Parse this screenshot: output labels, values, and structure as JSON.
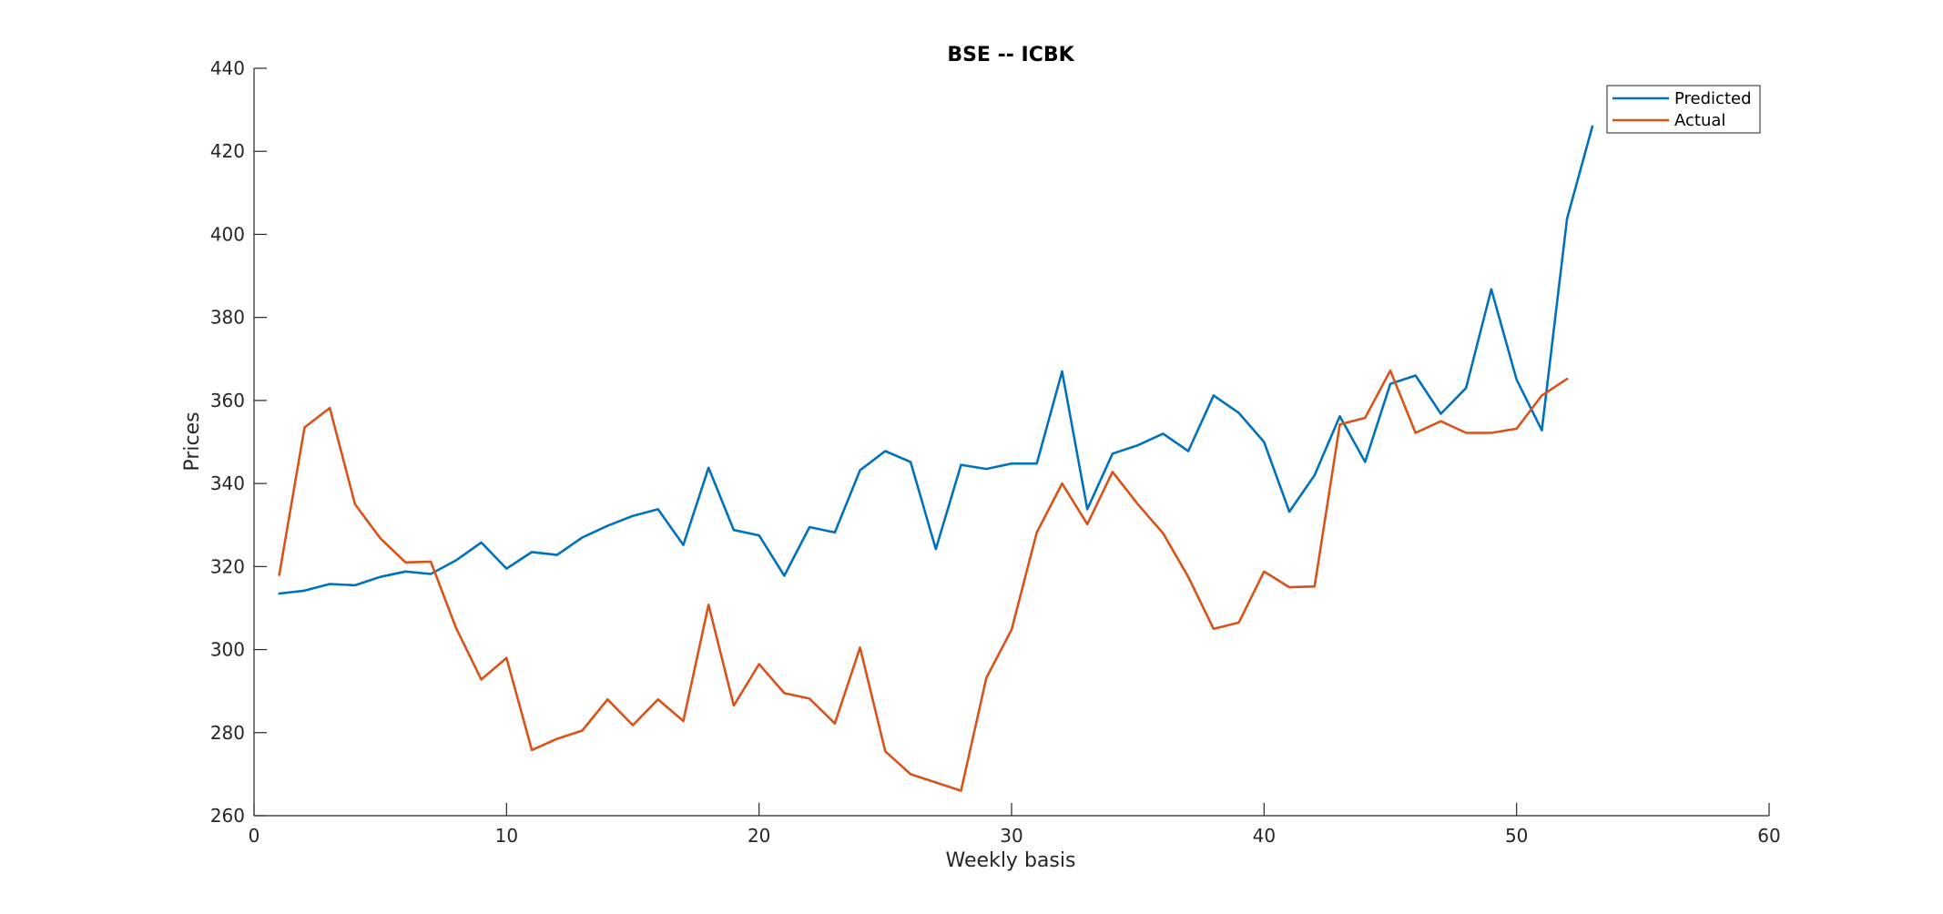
{
  "chart_data": {
    "type": "line",
    "title": "BSE -- ICBK",
    "xlabel": "Weekly basis",
    "ylabel": "Prices",
    "xlim": [
      0,
      60
    ],
    "ylim": [
      260,
      440
    ],
    "xticks": [
      "0",
      "10",
      "20",
      "30",
      "40",
      "50",
      "60"
    ],
    "yticks": [
      "260",
      "280",
      "300",
      "320",
      "340",
      "360",
      "380",
      "400",
      "420",
      "440"
    ],
    "xtick_values": [
      0,
      10,
      20,
      30,
      40,
      50,
      60
    ],
    "ytick_values": [
      260,
      280,
      300,
      320,
      340,
      360,
      380,
      400,
      420,
      440
    ],
    "grid": false,
    "legend_position": "top-right",
    "series": [
      {
        "name": "Predicted",
        "color": "#0072BD",
        "x": [
          1,
          2,
          3,
          4,
          5,
          6,
          7,
          8,
          9,
          10,
          11,
          12,
          13,
          14,
          15,
          16,
          17,
          18,
          19,
          20,
          21,
          22,
          23,
          24,
          25,
          26,
          27,
          28,
          29,
          30,
          31,
          32,
          33,
          34,
          35,
          36,
          37,
          38,
          39,
          40,
          41,
          42,
          43,
          44,
          45,
          46,
          47,
          48,
          49,
          50,
          51,
          52,
          53
        ],
        "y": [
          313.5,
          314.2,
          315.8,
          315.5,
          317.5,
          318.8,
          318.2,
          321.5,
          325.8,
          319.5,
          323.5,
          322.8,
          327.0,
          329.8,
          332.2,
          333.8,
          325.2,
          343.8,
          328.8,
          327.5,
          317.8,
          329.5,
          328.2,
          343.2,
          347.8,
          345.2,
          324.2,
          344.5,
          343.5,
          344.8,
          344.8,
          367.0,
          333.8,
          347.2,
          349.2,
          352.0,
          347.8,
          361.2,
          357.0,
          350.0,
          333.2,
          342.0,
          356.2,
          345.2,
          364.0,
          366.0,
          356.8,
          363.0,
          386.8,
          365.0,
          352.8,
          403.8,
          426.0
        ]
      },
      {
        "name": "Actual",
        "color": "#D95319",
        "x": [
          1,
          2,
          3,
          4,
          5,
          6,
          7,
          8,
          9,
          10,
          11,
          12,
          13,
          14,
          15,
          16,
          17,
          18,
          19,
          20,
          21,
          22,
          23,
          24,
          25,
          26,
          27,
          28,
          29,
          30,
          31,
          32,
          33,
          34,
          35,
          36,
          37,
          38,
          39,
          40,
          41,
          42,
          43,
          44,
          45,
          46,
          47,
          48,
          49,
          50,
          51,
          52
        ],
        "y": [
          318.0,
          353.5,
          358.2,
          335.0,
          326.8,
          321.0,
          321.2,
          305.2,
          292.8,
          298.0,
          275.8,
          278.5,
          280.5,
          288.0,
          281.8,
          288.0,
          282.8,
          310.8,
          286.5,
          296.5,
          289.5,
          288.2,
          282.2,
          300.5,
          275.5,
          270.0,
          268.0,
          266.0,
          293.2,
          304.8,
          328.2,
          340.0,
          330.2,
          342.8,
          335.0,
          328.0,
          317.5,
          305.0,
          306.5,
          318.8,
          315.0,
          315.2,
          354.2,
          355.8,
          367.2,
          352.2,
          355.0,
          352.2,
          352.2,
          353.2,
          361.2,
          365.2
        ]
      }
    ]
  }
}
